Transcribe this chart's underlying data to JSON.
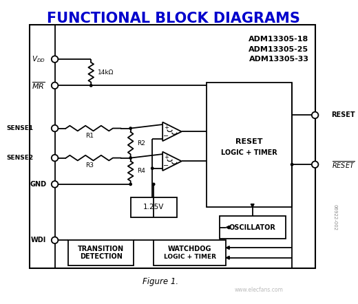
{
  "title": "FUNCTIONAL BLOCK DIAGRAMS",
  "title_fontsize": 15,
  "title_color": "#0000CC",
  "fig_width": 5.2,
  "fig_height": 4.42,
  "dpi": 100,
  "bg_color": "#FFFFFF",
  "line_color": "#000000",
  "model_lines": [
    "ADM13305-18",
    "ADM13305-25",
    "ADM13305-33"
  ],
  "figure_caption": "Figure 1.",
  "watermark": "www.elecfans.com",
  "footnote_code": "06922-002"
}
